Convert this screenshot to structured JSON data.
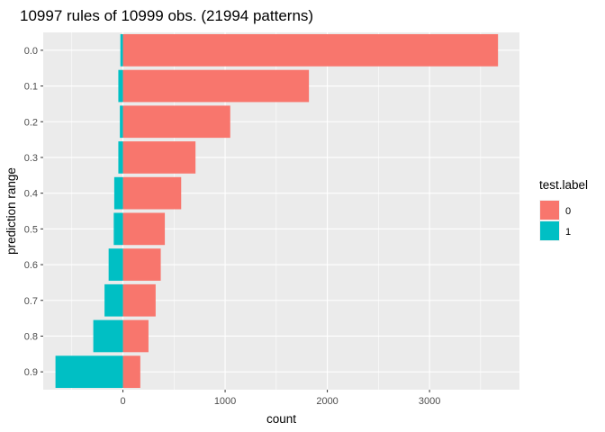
{
  "chart_data": {
    "type": "bar",
    "orientation": "horizontal",
    "title": "10997 rules of 10999 obs. (21994 patterns)",
    "xlabel": "count",
    "ylabel": "prediction range",
    "categories": [
      "0.0",
      "0.1",
      "0.2",
      "0.3",
      "0.4",
      "0.5",
      "0.6",
      "0.7",
      "0.8",
      "0.9"
    ],
    "series": [
      {
        "name": "0",
        "color": "#F8766D",
        "values": [
          3670,
          1820,
          1050,
          710,
          570,
          410,
          370,
          320,
          250,
          170
        ]
      },
      {
        "name": "1",
        "color": "#00BFC4",
        "values": [
          -25,
          -45,
          -30,
          -45,
          -85,
          -90,
          -140,
          -180,
          -290,
          -660
        ]
      }
    ],
    "xlim": [
      -780,
      3880
    ],
    "xticks": [
      0,
      1000,
      2000,
      3000
    ],
    "xtick_labels": [
      "0",
      "1000",
      "2000",
      "3000"
    ],
    "legend": {
      "title": "test.label",
      "position": "right"
    },
    "grid": true,
    "panel_background": "#EBEBEB"
  }
}
